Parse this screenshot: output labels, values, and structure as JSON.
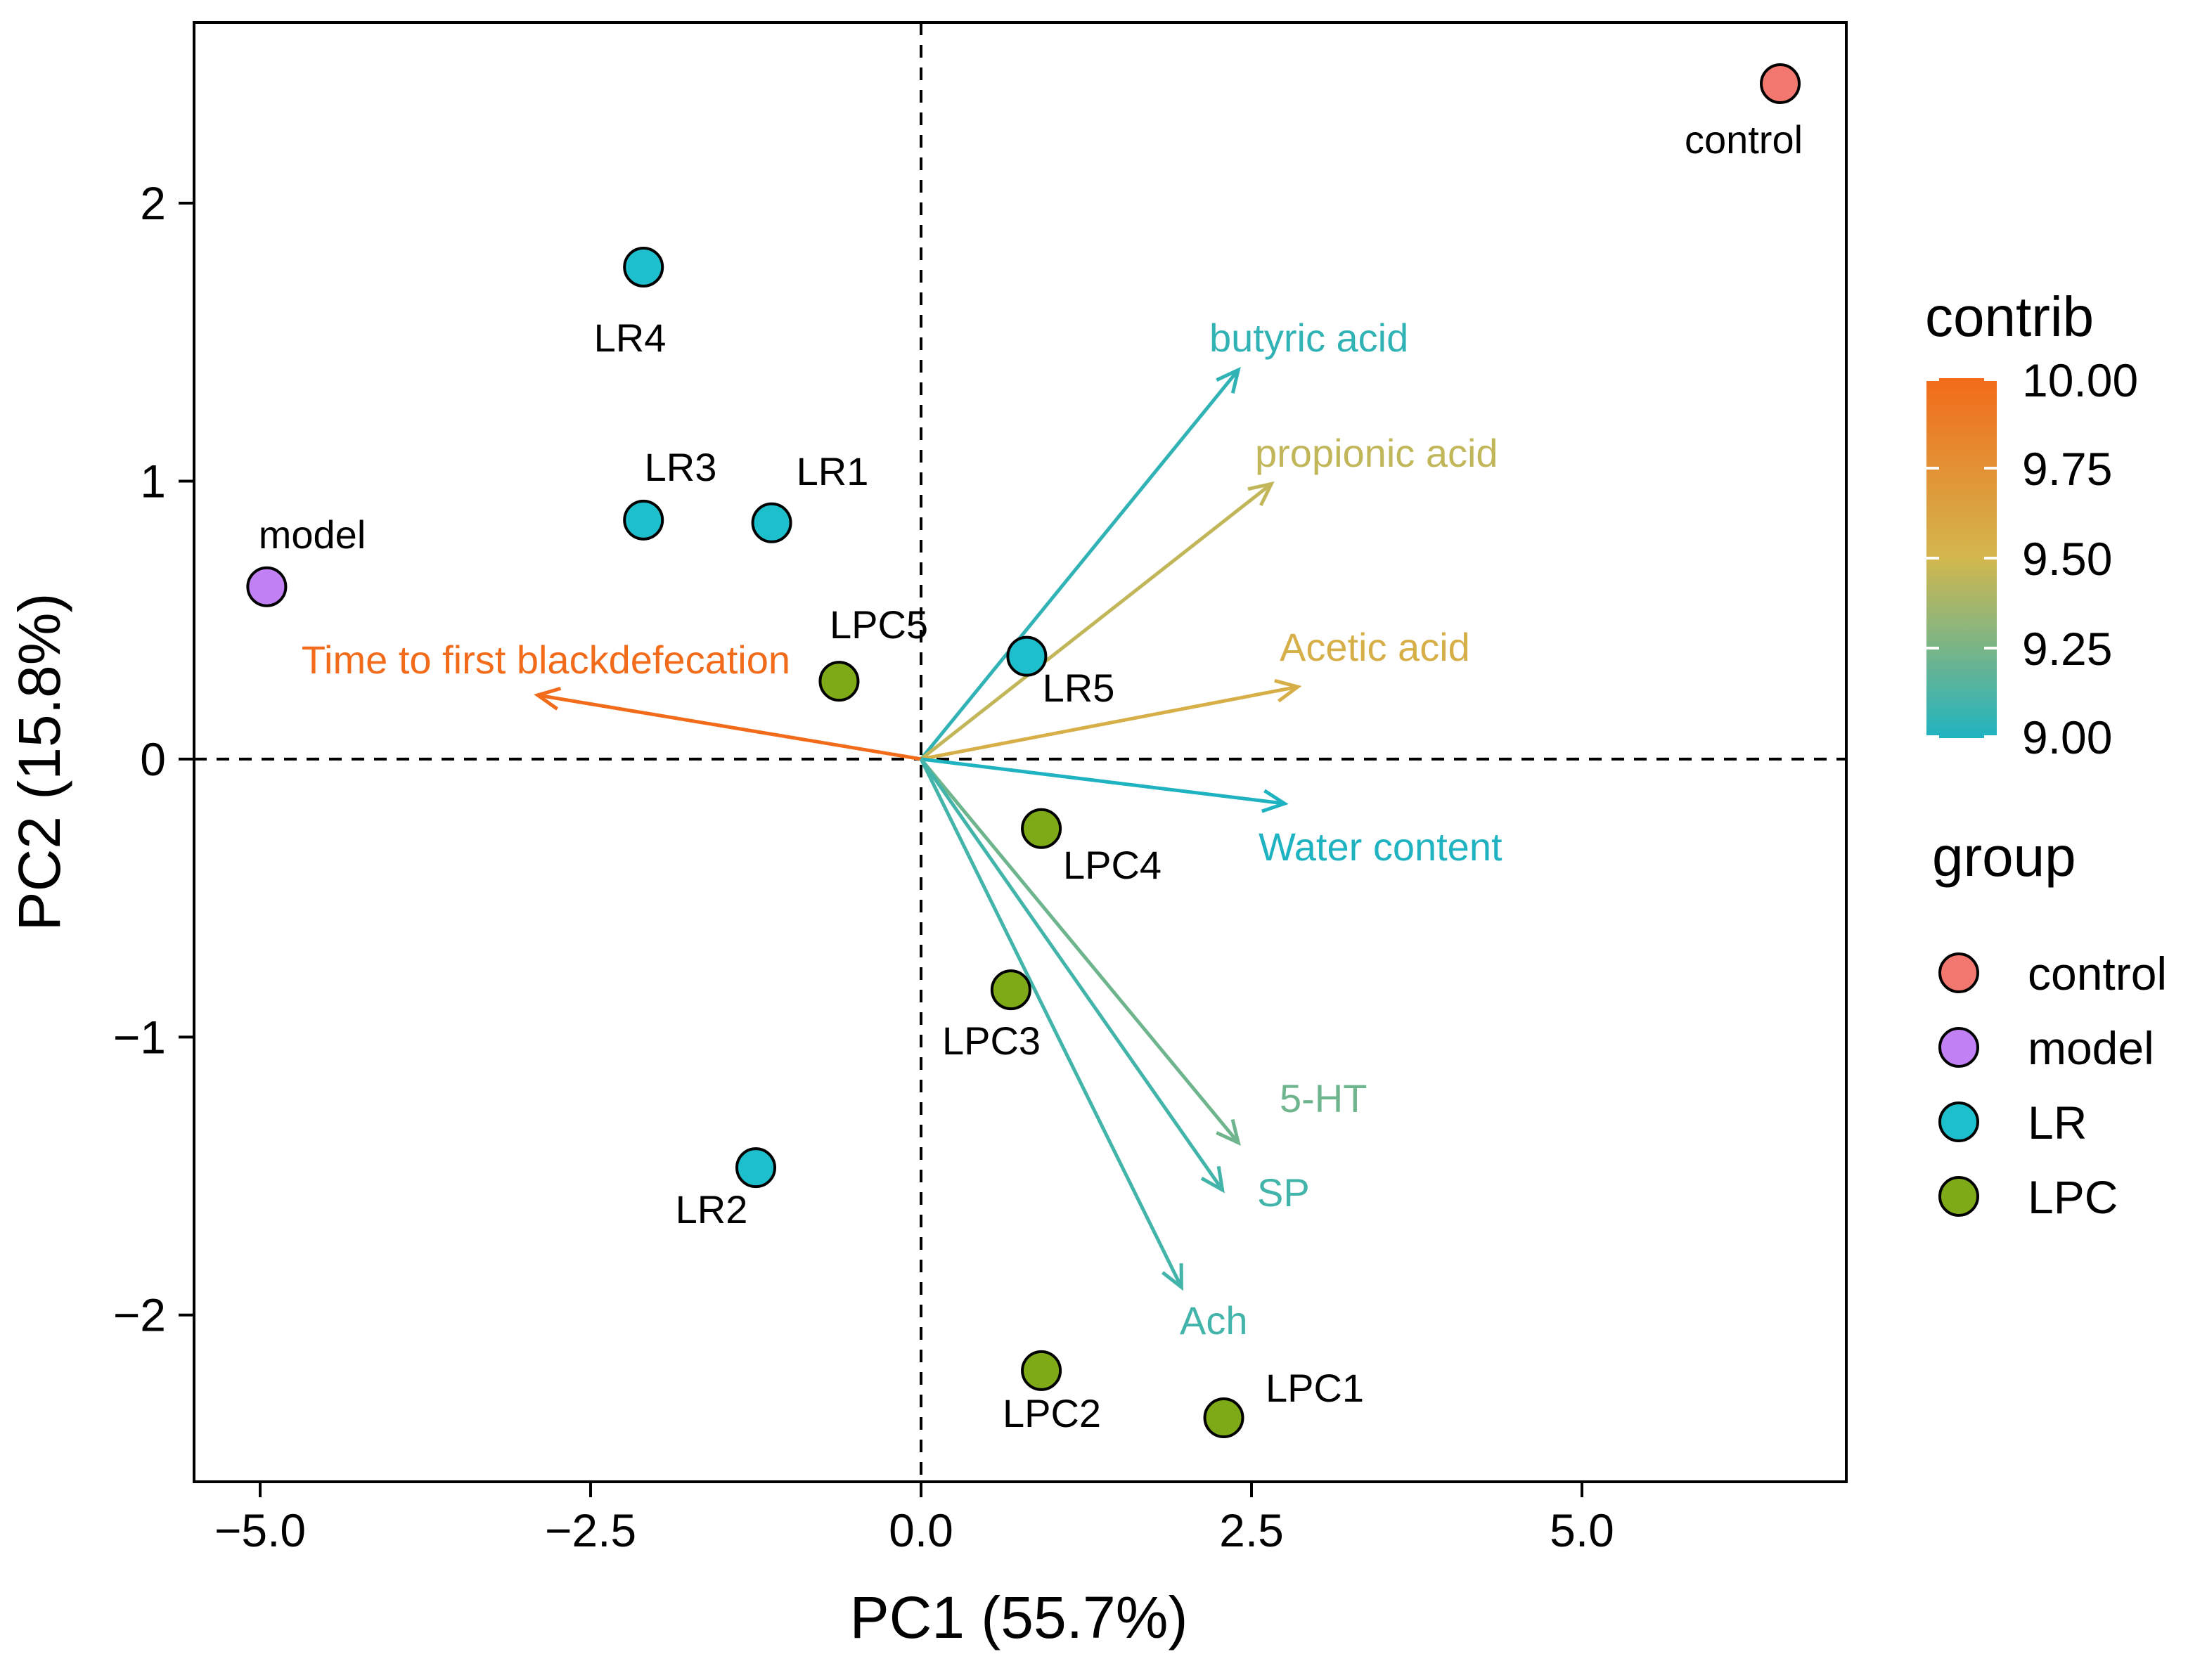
{
  "chart_data": {
    "type": "scatter",
    "subtype": "PCA biplot",
    "xlabel": "PC1 (55.7%)",
    "ylabel": "PC2 (15.8%)",
    "xlim": [
      -5.5,
      7.0
    ],
    "ylim": [
      -2.6,
      2.65
    ],
    "xticks": [
      -5.0,
      -2.5,
      0.0,
      2.5,
      5.0
    ],
    "xtick_labels": [
      "−5.0",
      "−2.5",
      "0.0",
      "2.5",
      "5.0"
    ],
    "yticks": [
      -2,
      -1,
      0,
      1,
      2
    ],
    "ytick_labels": [
      "−2",
      "−1",
      "0",
      "1",
      "2"
    ],
    "grid": false,
    "reference_lines": [
      "x = 0 (dashed)",
      "y = 0 (dashed)"
    ],
    "points": [
      {
        "label": "control",
        "group": "control",
        "x": 6.5,
        "y": 2.43
      },
      {
        "label": "model",
        "group": "model",
        "x": -4.95,
        "y": 0.62
      },
      {
        "label": "LR4",
        "group": "LR",
        "x": -2.1,
        "y": 1.77
      },
      {
        "label": "LR3",
        "group": "LR",
        "x": -2.1,
        "y": 0.86
      },
      {
        "label": "LR1",
        "group": "LR",
        "x": -1.13,
        "y": 0.85
      },
      {
        "label": "LR5",
        "group": "LR",
        "x": 0.8,
        "y": 0.37
      },
      {
        "label": "LR2",
        "group": "LR",
        "x": -1.25,
        "y": -1.47
      },
      {
        "label": "LPC5",
        "group": "LPC",
        "x": -0.62,
        "y": 0.28
      },
      {
        "label": "LPC4",
        "group": "LPC",
        "x": 0.91,
        "y": -0.25
      },
      {
        "label": "LPC3",
        "group": "LPC",
        "x": 0.68,
        "y": -0.83
      },
      {
        "label": "LPC2",
        "group": "LPC",
        "x": 0.91,
        "y": -2.2
      },
      {
        "label": "LPC1",
        "group": "LPC",
        "x": 2.29,
        "y": -2.37
      }
    ],
    "variables": [
      {
        "label": "butyric acid",
        "x": 2.4,
        "y": 1.4,
        "contrib": 9.05
      },
      {
        "label": "propionic acid",
        "x": 2.65,
        "y": 0.99,
        "contrib": 9.45
      },
      {
        "label": "Acetic acid",
        "x": 2.85,
        "y": 0.26,
        "contrib": 9.55
      },
      {
        "label": "Time to first blackdefecation",
        "x": -2.9,
        "y": 0.23,
        "contrib": 10.0
      },
      {
        "label": "Water content",
        "x": 2.75,
        "y": -0.16,
        "contrib": 9.0
      },
      {
        "label": "5-HT",
        "x": 2.4,
        "y": -1.38,
        "contrib": 9.22
      },
      {
        "label": "SP",
        "x": 2.28,
        "y": -1.55,
        "contrib": 9.1
      },
      {
        "label": "Ach",
        "x": 1.97,
        "y": -1.9,
        "contrib": 9.1
      }
    ],
    "contrib_legend": {
      "title": "contrib",
      "range": [
        9.0,
        10.0
      ],
      "ticks": [
        10.0,
        9.75,
        9.5,
        9.25,
        9.0
      ],
      "tick_labels": [
        "10.00",
        "9.75",
        "9.50",
        "9.25",
        "9.00"
      ],
      "colors": [
        "#1fb3c1",
        "#d3b74e",
        "#f26b1a"
      ]
    },
    "group_legend": {
      "title": "group",
      "items": [
        {
          "label": "control",
          "color": "#f2786f"
        },
        {
          "label": "model",
          "color": "#c280f5"
        },
        {
          "label": "LR",
          "color": "#1dbfcc"
        },
        {
          "label": "LPC",
          "color": "#7faa18"
        }
      ]
    }
  }
}
